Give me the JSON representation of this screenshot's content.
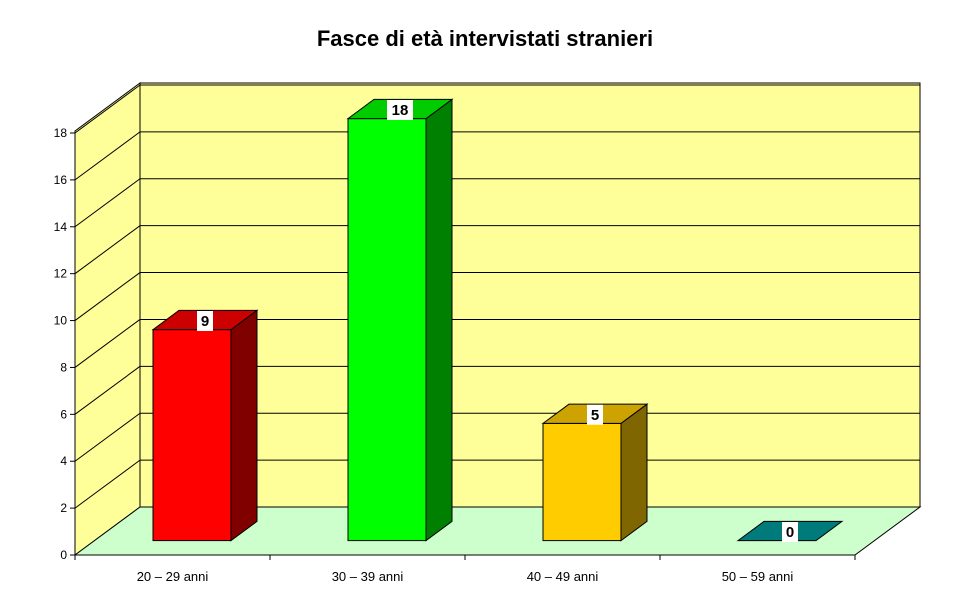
{
  "chart_data": {
    "type": "bar",
    "title": "Fasce di età intervistati stranieri",
    "xlabel": "",
    "ylabel": "",
    "categories": [
      "20 – 29 anni",
      "30 – 39 anni",
      "40 – 49 anni",
      "50 – 59 anni"
    ],
    "values": [
      9,
      18,
      5,
      0
    ],
    "data_labels": [
      "9",
      "18",
      "5",
      "0"
    ],
    "ylim": [
      0,
      18
    ],
    "y_ticks": [
      0,
      2,
      4,
      6,
      8,
      10,
      12,
      14,
      16,
      18
    ],
    "three_d": true,
    "grid": true,
    "legend": "none",
    "colors": {
      "bars": [
        "#ff0000",
        "#00ff00",
        "#ffcc00",
        "#009999"
      ],
      "bars_side": [
        "#800000",
        "#008000",
        "#806600",
        "#004d4d"
      ],
      "bars_top": [
        "#cc0000",
        "#00cc00",
        "#cca300",
        "#007a7a"
      ],
      "wall": "#ffff99",
      "floor": "#ccffcc"
    }
  }
}
